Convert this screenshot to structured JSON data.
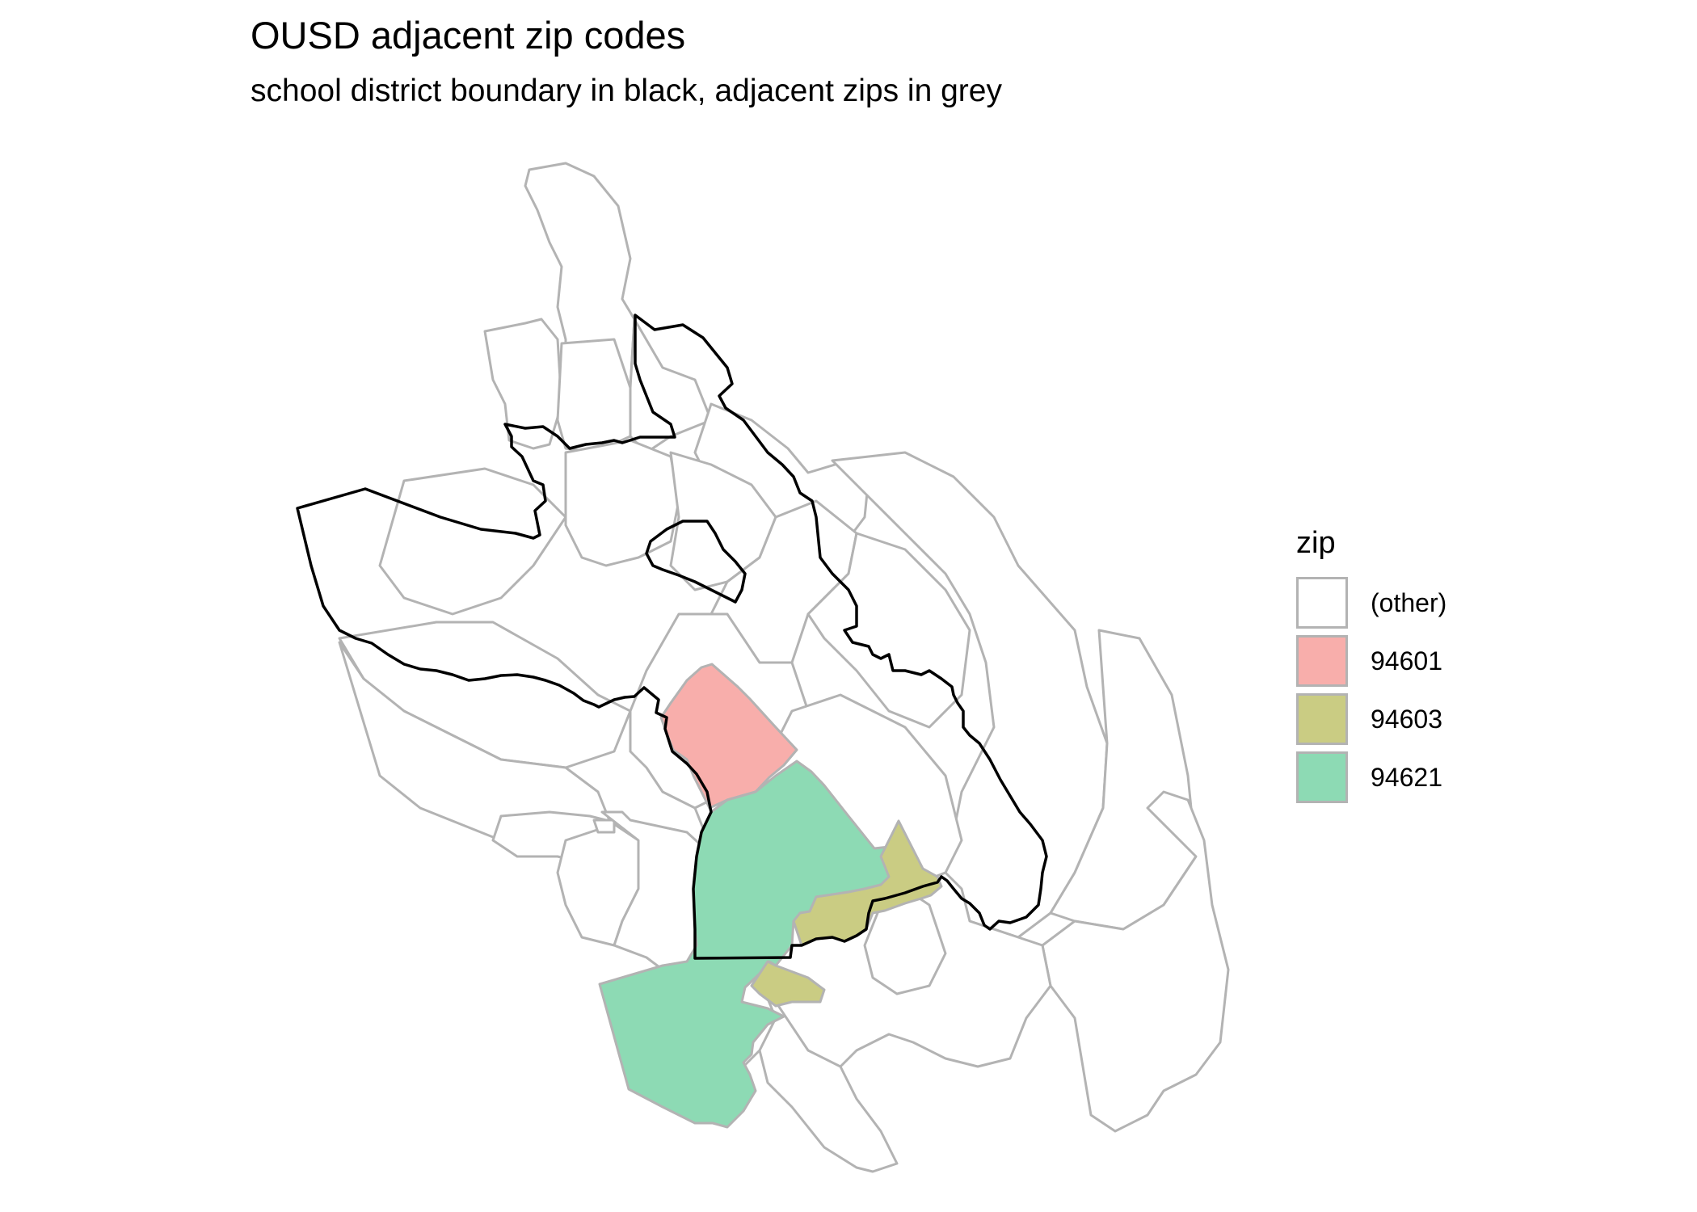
{
  "title": "OUSD adjacent zip codes",
  "subtitle": "school district boundary in black, adjacent zips in grey",
  "map": {
    "boundary_color": "#000000",
    "zip_border_color": "#b3b3b3",
    "fill_colors": {
      "other": "#ffffff",
      "94601": "#f8aeab",
      "94603": "#cacc83",
      "94621": "#8ddab4"
    }
  },
  "legend": {
    "title": "zip",
    "items": [
      {
        "label": "(other)",
        "color": "#ffffff"
      },
      {
        "label": "94601",
        "color": "#f8aeab"
      },
      {
        "label": "94603",
        "color": "#cacc83"
      },
      {
        "label": "94621",
        "color": "#8ddab4"
      }
    ]
  }
}
